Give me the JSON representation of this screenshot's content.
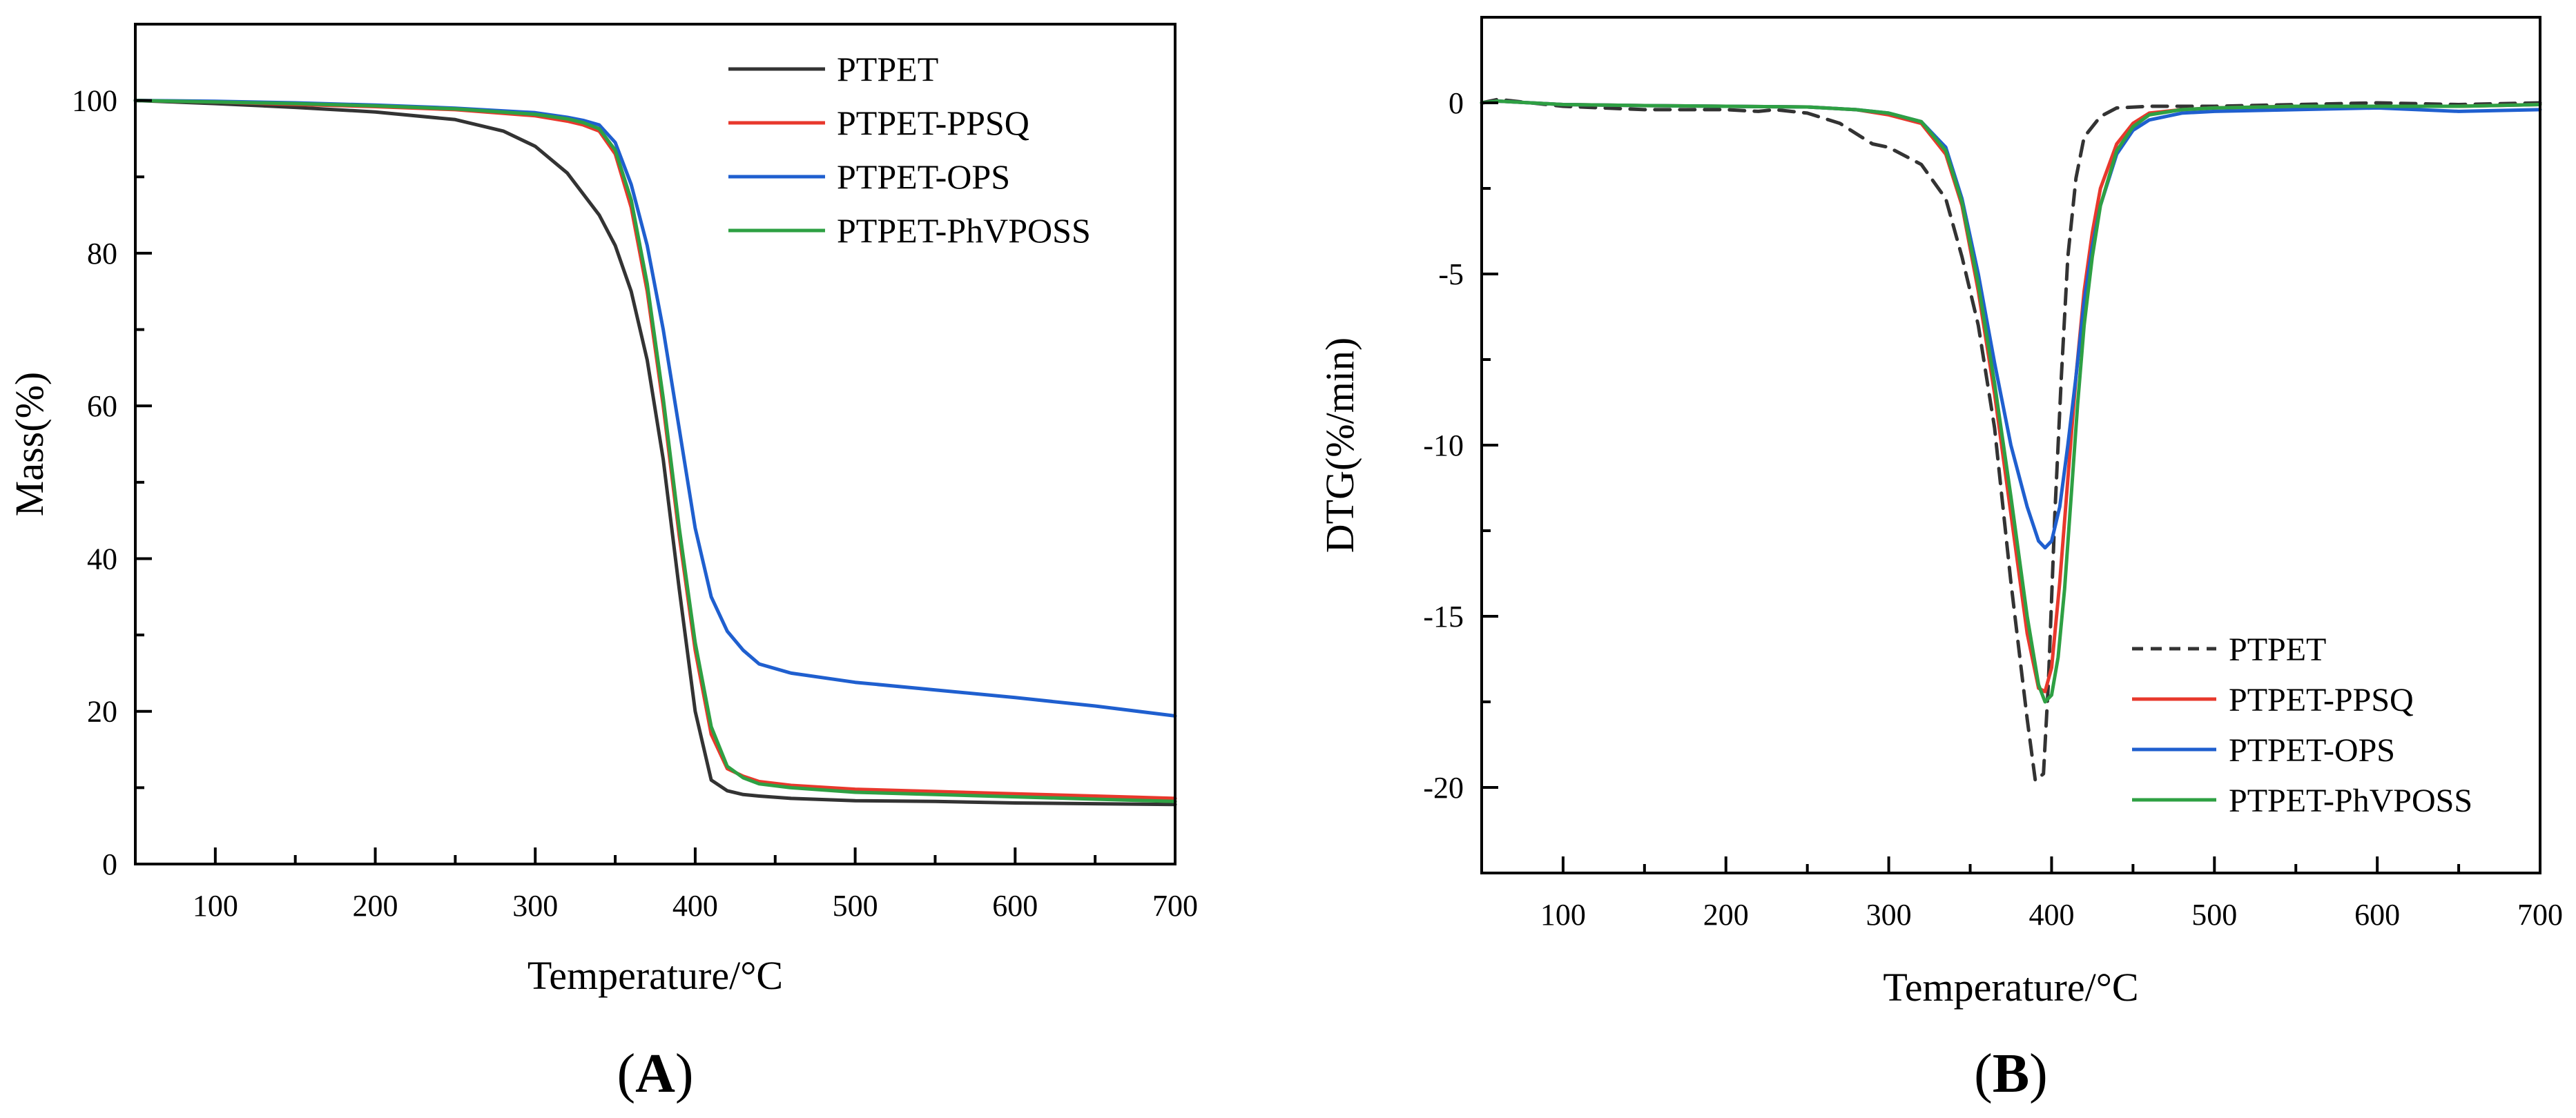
{
  "chart_data": [
    {
      "panel": "A",
      "panel_label": "A",
      "type": "line",
      "title": "",
      "xlabel": "Temperature/°C",
      "ylabel": "Mass(%)",
      "xlim": [
        50,
        700
      ],
      "ylim": [
        0,
        110
      ],
      "xticks": [
        100,
        200,
        300,
        400,
        500,
        600,
        700
      ],
      "yticks": [
        0,
        20,
        40,
        60,
        80,
        100
      ],
      "grid": false,
      "legend_position": "top-right",
      "series": [
        {
          "name": "PTPET",
          "color": "#333333",
          "dash": "solid",
          "x": [
            50,
            100,
            150,
            200,
            250,
            280,
            300,
            320,
            340,
            350,
            360,
            370,
            380,
            390,
            400,
            410,
            420,
            430,
            440,
            460,
            500,
            550,
            600,
            650,
            700
          ],
          "y": [
            100,
            99.6,
            99.1,
            98.5,
            97.5,
            96,
            94,
            90.5,
            85,
            81,
            75,
            66,
            53,
            36,
            20,
            11,
            9.6,
            9.1,
            8.9,
            8.6,
            8.3,
            8.2,
            8.0,
            7.9,
            7.8
          ]
        },
        {
          "name": "PTPET-PPSQ",
          "color": "#e8382c",
          "dash": "solid",
          "x": [
            50,
            100,
            150,
            200,
            250,
            300,
            320,
            330,
            340,
            350,
            360,
            370,
            380,
            390,
            400,
            410,
            420,
            430,
            440,
            460,
            500,
            550,
            600,
            650,
            700
          ],
          "y": [
            100,
            99.8,
            99.5,
            99.2,
            98.8,
            98,
            97.3,
            96.8,
            96,
            93,
            86,
            75,
            60,
            43,
            28,
            17,
            12.5,
            11.5,
            10.8,
            10.3,
            9.8,
            9.5,
            9.2,
            8.9,
            8.6
          ]
        },
        {
          "name": "PTPET-OPS",
          "color": "#1f5fcf",
          "dash": "solid",
          "x": [
            50,
            100,
            150,
            200,
            250,
            300,
            320,
            330,
            340,
            350,
            360,
            370,
            380,
            390,
            400,
            410,
            420,
            430,
            440,
            460,
            500,
            550,
            600,
            650,
            700
          ],
          "y": [
            100,
            99.9,
            99.7,
            99.4,
            99,
            98.4,
            97.8,
            97.4,
            96.8,
            94.5,
            89,
            81,
            70,
            57,
            44,
            35,
            30.5,
            28,
            26.2,
            25,
            23.8,
            22.8,
            21.8,
            20.7,
            19.4
          ]
        },
        {
          "name": "PTPET-PhVPOSS",
          "color": "#2ea043",
          "dash": "solid",
          "x": [
            50,
            100,
            150,
            200,
            250,
            300,
            320,
            330,
            340,
            350,
            360,
            370,
            380,
            390,
            400,
            410,
            420,
            430,
            440,
            460,
            500,
            550,
            600,
            650,
            700
          ],
          "y": [
            100,
            99.8,
            99.6,
            99.3,
            98.9,
            98.2,
            97.6,
            97.1,
            96.3,
            93.5,
            87,
            76,
            61,
            44,
            29,
            18,
            12.8,
            11.3,
            10.5,
            10,
            9.4,
            9.1,
            8.8,
            8.5,
            8.2
          ]
        }
      ]
    },
    {
      "panel": "B",
      "panel_label": "B",
      "type": "line",
      "title": "",
      "xlabel": "Temperature/°C",
      "ylabel": "DTG(%/min)",
      "xlim": [
        50,
        700
      ],
      "ylim": [
        -22.5,
        2.5
      ],
      "xticks": [
        100,
        200,
        300,
        400,
        500,
        600,
        700
      ],
      "yticks": [
        0,
        -5,
        -10,
        -15,
        -20
      ],
      "grid": false,
      "legend_position": "bottom-right",
      "series": [
        {
          "name": "PTPET",
          "color": "#333333",
          "dash": "dashed",
          "x": [
            50,
            60,
            100,
            150,
            200,
            220,
            230,
            250,
            270,
            290,
            300,
            320,
            335,
            345,
            355,
            365,
            375,
            385,
            390,
            395,
            398,
            402,
            406,
            410,
            415,
            420,
            430,
            440,
            460,
            500,
            550,
            600,
            650,
            700
          ],
          "y": [
            0,
            0.1,
            -0.1,
            -0.2,
            -0.2,
            -0.25,
            -0.2,
            -0.3,
            -0.6,
            -1.2,
            -1.3,
            -1.8,
            -2.8,
            -4.5,
            -6.5,
            -9.5,
            -14,
            -18,
            -19.8,
            -19.6,
            -17,
            -12,
            -8,
            -4.5,
            -2.2,
            -1.0,
            -0.4,
            -0.15,
            -0.1,
            -0.1,
            -0.05,
            0,
            -0.05,
            0
          ]
        },
        {
          "name": "PTPET-PPSQ",
          "color": "#e8382c",
          "dash": "solid",
          "x": [
            50,
            60,
            100,
            150,
            200,
            250,
            280,
            300,
            320,
            335,
            345,
            355,
            365,
            375,
            385,
            392,
            396,
            400,
            405,
            410,
            415,
            420,
            425,
            430,
            440,
            450,
            460,
            480,
            500,
            550,
            600,
            650,
            700
          ],
          "y": [
            0,
            0.05,
            -0.05,
            -0.08,
            -0.1,
            -0.12,
            -0.2,
            -0.35,
            -0.6,
            -1.5,
            -3,
            -5.5,
            -8.5,
            -12,
            -15.5,
            -17.1,
            -17.2,
            -16.5,
            -14,
            -11,
            -8,
            -5.5,
            -3.8,
            -2.5,
            -1.2,
            -0.6,
            -0.3,
            -0.2,
            -0.15,
            -0.1,
            -0.1,
            -0.1,
            -0.05
          ]
        },
        {
          "name": "PTPET-OPS",
          "color": "#1f5fcf",
          "dash": "solid",
          "x": [
            50,
            60,
            100,
            150,
            200,
            250,
            280,
            300,
            320,
            335,
            345,
            355,
            365,
            375,
            385,
            392,
            396,
            400,
            405,
            410,
            415,
            420,
            425,
            430,
            440,
            450,
            460,
            480,
            500,
            550,
            600,
            650,
            700
          ],
          "y": [
            0,
            0.05,
            -0.05,
            -0.08,
            -0.1,
            -0.12,
            -0.2,
            -0.3,
            -0.55,
            -1.3,
            -2.8,
            -5,
            -7.6,
            -10,
            -11.8,
            -12.8,
            -13.0,
            -12.8,
            -11.8,
            -10,
            -8,
            -5.8,
            -4.2,
            -3.0,
            -1.5,
            -0.8,
            -0.5,
            -0.3,
            -0.25,
            -0.2,
            -0.15,
            -0.25,
            -0.2
          ]
        },
        {
          "name": "PTPET-PhVPOSS",
          "color": "#2ea043",
          "dash": "solid",
          "x": [
            50,
            60,
            100,
            150,
            200,
            250,
            280,
            300,
            320,
            335,
            345,
            355,
            365,
            375,
            385,
            392,
            396,
            400,
            404,
            408,
            412,
            416,
            420,
            425,
            430,
            440,
            450,
            460,
            480,
            500,
            550,
            600,
            650,
            700
          ],
          "y": [
            0,
            0.05,
            -0.05,
            -0.08,
            -0.1,
            -0.12,
            -0.2,
            -0.3,
            -0.55,
            -1.4,
            -2.9,
            -5.3,
            -8.2,
            -11.5,
            -15,
            -17,
            -17.5,
            -17.3,
            -16.2,
            -14.2,
            -11.5,
            -8.8,
            -6.5,
            -4.5,
            -3.0,
            -1.4,
            -0.7,
            -0.35,
            -0.2,
            -0.15,
            -0.1,
            -0.1,
            -0.1,
            -0.05
          ]
        }
      ]
    }
  ]
}
